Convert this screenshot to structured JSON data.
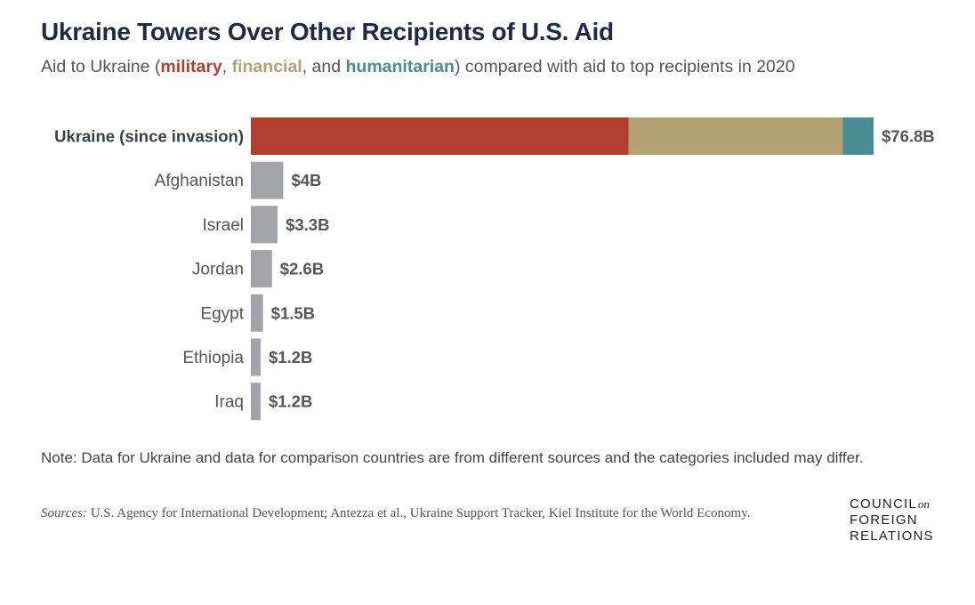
{
  "title": "Ukraine Towers Over Other Recipients of U.S. Aid",
  "subtitle": {
    "prefix": "Aid to Ukraine (",
    "military": "military",
    "sep1": ", ",
    "financial": "financial",
    "sep2": ", and ",
    "humanitarian": "humanitarian",
    "suffix": ") compared with aid to top recipients in 2020"
  },
  "colors": {
    "military": "#b03f2e",
    "financial": "#b4a172",
    "humanitarian": "#4b8b94",
    "other": "#a3a4a7"
  },
  "chart_data": {
    "type": "bar",
    "orientation": "horizontal",
    "stacked": true,
    "categories": [
      "Ukraine (since invasion)",
      "Afghanistan",
      "Israel",
      "Jordan",
      "Egypt",
      "Ethiopia",
      "Iraq"
    ],
    "totals": [
      76.8,
      4,
      3.3,
      2.6,
      1.5,
      1.2,
      1.2
    ],
    "value_labels": [
      "$76.8B",
      "$4B",
      "$3.3B",
      "$2.6B",
      "$1.5B",
      "$1.2B",
      "$1.2B"
    ],
    "ukraine_breakdown": {
      "military": 46.6,
      "financial": 26.4,
      "humanitarian": 3.8
    },
    "unit": "billion USD",
    "grid": false,
    "legend": "inline in subtitle"
  },
  "note": "Note: Data for Ukraine and data for comparison countries are from different sources and the categories included may differ.",
  "sources": {
    "label": "Sources:",
    "text": " U.S. Agency for International Development; Antezza et al., Ukraine Support Tracker, Kiel Institute for the World Economy."
  },
  "logo": {
    "line1": "COUNCIL",
    "on": "on",
    "line2": "FOREIGN",
    "line3": "RELATIONS"
  }
}
